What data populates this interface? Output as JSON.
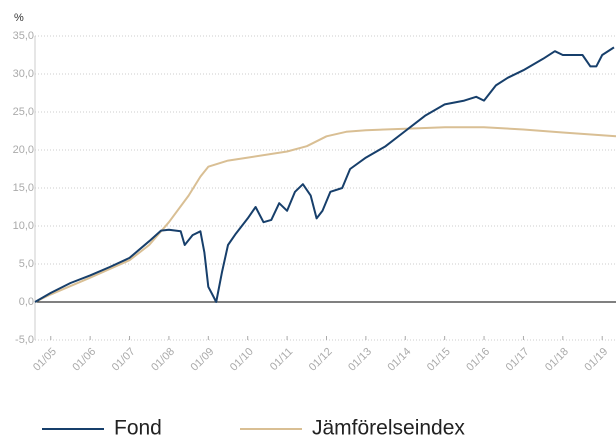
{
  "chart_data": {
    "type": "line",
    "ylabel": "%",
    "xlim": [
      2004.6,
      2019.35
    ],
    "ylim": [
      -5,
      35
    ],
    "yticks": [
      {
        "value": -5,
        "label": "-5,0"
      },
      {
        "value": 0,
        "label": "0,0"
      },
      {
        "value": 5,
        "label": "5,0"
      },
      {
        "value": 10,
        "label": "10,0"
      },
      {
        "value": 15,
        "label": "15,0"
      },
      {
        "value": 20,
        "label": "20,0"
      },
      {
        "value": 25,
        "label": "25,0"
      },
      {
        "value": 30,
        "label": "30,0"
      },
      {
        "value": 35,
        "label": "35,0"
      }
    ],
    "xticks": [
      {
        "value": 2005,
        "label": "01/05"
      },
      {
        "value": 2006,
        "label": "01/06"
      },
      {
        "value": 2007,
        "label": "01/07"
      },
      {
        "value": 2008,
        "label": "01/08"
      },
      {
        "value": 2009,
        "label": "01/09"
      },
      {
        "value": 2010,
        "label": "01/10"
      },
      {
        "value": 2011,
        "label": "01/11"
      },
      {
        "value": 2012,
        "label": "01/12"
      },
      {
        "value": 2013,
        "label": "01/13"
      },
      {
        "value": 2014,
        "label": "01/14"
      },
      {
        "value": 2015,
        "label": "01/15"
      },
      {
        "value": 2016,
        "label": "01/16"
      },
      {
        "value": 2017,
        "label": "01/17"
      },
      {
        "value": 2018,
        "label": "01/18"
      },
      {
        "value": 2019,
        "label": "01/19"
      }
    ],
    "grid": true,
    "series": [
      {
        "name": "Fond",
        "color": "#173f6b",
        "x": [
          2004.6,
          2005,
          2005.5,
          2006,
          2006.5,
          2007,
          2007.5,
          2007.8,
          2008,
          2008.3,
          2008.4,
          2008.6,
          2008.8,
          2008.9,
          2009,
          2009.1,
          2009.2,
          2009.35,
          2009.5,
          2009.7,
          2010,
          2010.2,
          2010.4,
          2010.6,
          2010.8,
          2011,
          2011.2,
          2011.4,
          2011.6,
          2011.75,
          2011.9,
          2012.1,
          2012.4,
          2012.6,
          2013,
          2013.5,
          2014,
          2014.5,
          2015,
          2015.5,
          2015.8,
          2016,
          2016.3,
          2016.6,
          2017,
          2017.5,
          2017.8,
          2018,
          2018.5,
          2018.7,
          2018.85,
          2019,
          2019.3
        ],
        "values": [
          0,
          1.2,
          2.5,
          3.5,
          4.6,
          5.8,
          8.0,
          9.4,
          9.5,
          9.3,
          7.5,
          8.8,
          9.3,
          6.5,
          2.0,
          1.0,
          0.0,
          4.0,
          7.5,
          9.0,
          11.0,
          12.5,
          10.5,
          10.8,
          13.0,
          12.0,
          14.5,
          15.5,
          14.0,
          11.0,
          12.0,
          14.5,
          15.0,
          17.5,
          19.0,
          20.5,
          22.5,
          24.5,
          26.0,
          26.5,
          27.0,
          26.5,
          28.5,
          29.5,
          30.5,
          32.0,
          33.0,
          32.5,
          32.5,
          31.0,
          31.0,
          32.5,
          33.5
        ]
      },
      {
        "name": "Jämförelseindex",
        "color": "#d9bf94",
        "x": [
          2004.6,
          2005,
          2006,
          2007,
          2007.5,
          2008,
          2008.5,
          2008.8,
          2009,
          2009.5,
          2010,
          2011,
          2011.5,
          2012,
          2012.5,
          2013,
          2014,
          2015,
          2016,
          2017,
          2018,
          2019.35
        ],
        "values": [
          0,
          1.0,
          3.2,
          5.5,
          7.5,
          10.5,
          14,
          16.5,
          17.8,
          18.6,
          19.0,
          19.8,
          20.5,
          21.8,
          22.4,
          22.6,
          22.8,
          23.0,
          23.0,
          22.7,
          22.3,
          21.8
        ]
      }
    ]
  }
}
